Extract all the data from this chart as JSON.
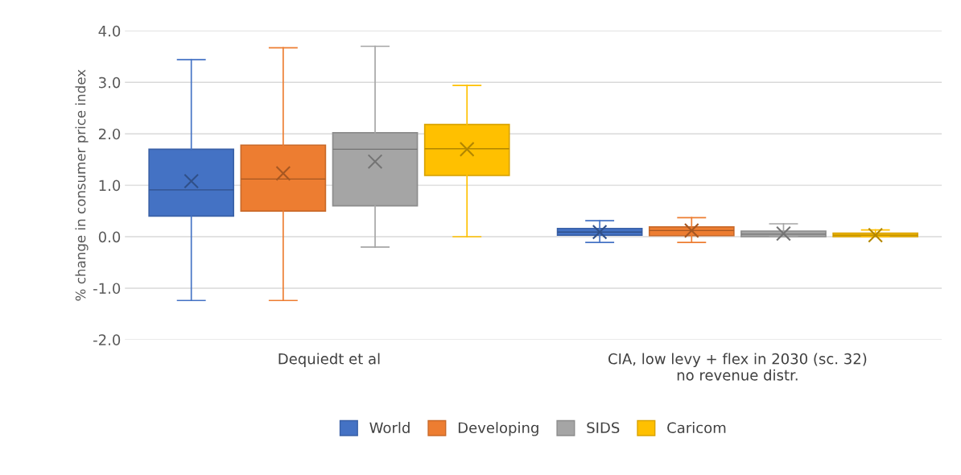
{
  "chart_data": {
    "type": "box",
    "ylabel": "% change in consumer price index",
    "categories": [
      "Dequiedt et al",
      "CIA, low levy + flex in 2030 (sc. 32)\nno revenue distr."
    ],
    "series": [
      {
        "name": "World",
        "color": "#4472c4",
        "boxes": [
          {
            "low": -1.24,
            "q1": 0.4,
            "median": 0.91,
            "q3": 1.7,
            "high": 3.44,
            "mean": 1.08
          },
          {
            "low": -0.11,
            "q1": 0.03,
            "median": 0.09,
            "q3": 0.16,
            "high": 0.31,
            "mean": 0.09
          }
        ]
      },
      {
        "name": "Developing",
        "color": "#ed7d31",
        "boxes": [
          {
            "low": -1.24,
            "q1": 0.5,
            "median": 1.12,
            "q3": 1.78,
            "high": 3.67,
            "mean": 1.23
          },
          {
            "low": -0.11,
            "q1": 0.02,
            "median": 0.12,
            "q3": 0.19,
            "high": 0.37,
            "mean": 0.12
          }
        ]
      },
      {
        "name": "SIDS",
        "color": "#a5a5a5",
        "boxes": [
          {
            "low": -0.2,
            "q1": 0.6,
            "median": 1.7,
            "q3": 2.02,
            "high": 3.7,
            "mean": 1.46
          },
          {
            "low": 0.0,
            "q1": 0.0,
            "median": 0.05,
            "q3": 0.11,
            "high": 0.25,
            "mean": 0.06
          }
        ]
      },
      {
        "name": "Caricom",
        "color": "#ffc000",
        "boxes": [
          {
            "low": 0.0,
            "q1": 1.19,
            "median": 1.71,
            "q3": 2.18,
            "high": 2.94,
            "mean": 1.7
          },
          {
            "low": 0.0,
            "q1": 0.0,
            "median": 0.03,
            "q3": 0.07,
            "high": 0.13,
            "mean": 0.03
          }
        ]
      }
    ],
    "ylim": [
      -2.0,
      4.0
    ],
    "yticks": [
      {
        "value": -2,
        "label": "-2.0"
      },
      {
        "value": -1,
        "label": "-1.0"
      },
      {
        "value": 0,
        "label": "0.0"
      },
      {
        "value": 1,
        "label": "1.0"
      },
      {
        "value": 2,
        "label": "2.0"
      },
      {
        "value": 3,
        "label": "3.0"
      },
      {
        "value": 4,
        "label": "4.0"
      }
    ],
    "grid": "y",
    "legend": "bottom"
  }
}
